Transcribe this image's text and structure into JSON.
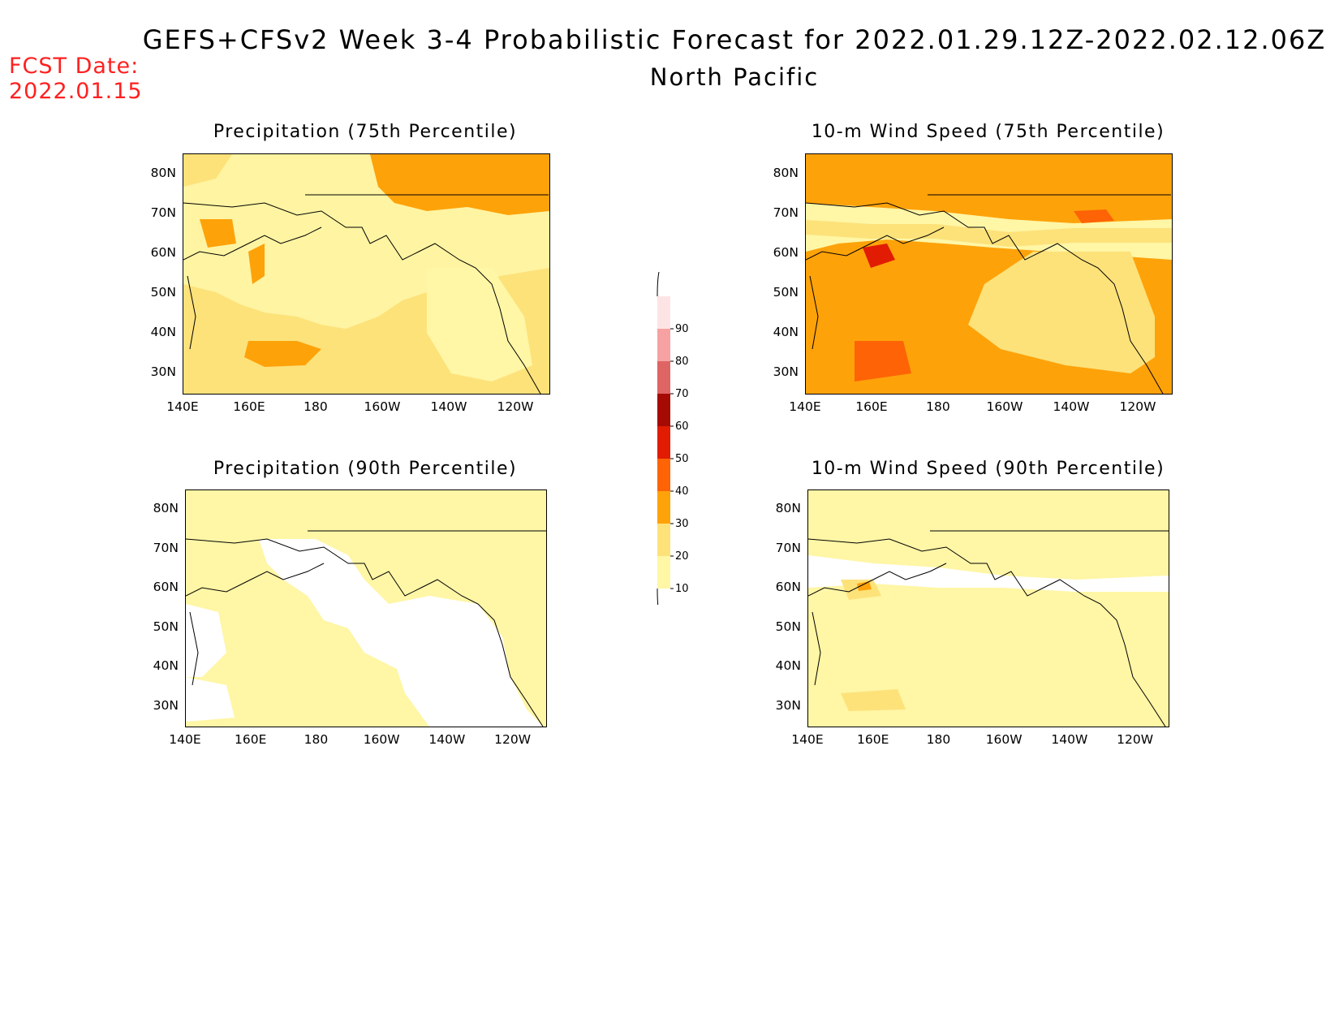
{
  "header": {
    "title_line1": "GEFS+CFSv2 Week 3-4 Probabilistic Forecast for 2022.01.29.12Z-2022.02.12.06Z",
    "title_line2": "North Pacific",
    "fcst_label": "FCST Date:",
    "fcst_date": "2022.01.15",
    "fcst_color": "#ff2020"
  },
  "axes": {
    "lat_labels": [
      "80N",
      "70N",
      "60N",
      "50N",
      "40N",
      "30N"
    ],
    "lon_labels": [
      "140E",
      "160E",
      "180",
      "160W",
      "140W",
      "120W"
    ]
  },
  "panels": [
    {
      "id": "precip75",
      "title": "Precipitation (75th Percentile)"
    },
    {
      "id": "wind75",
      "title": "10-m Wind Speed (75th Percentile)"
    },
    {
      "id": "precip90",
      "title": "Precipitation (90th Percentile)"
    },
    {
      "id": "wind90",
      "title": "10-m Wind Speed (90th Percentile)"
    }
  ],
  "colorbar": {
    "levels": [
      "10",
      "20",
      "30",
      "40",
      "50",
      "60",
      "70",
      "80",
      "90"
    ],
    "colors": [
      "#fff6a6",
      "#fde27a",
      "#fea20a",
      "#fe6306",
      "#e11c03",
      "#a50b02",
      "#df6464",
      "#f6a2a2",
      "#fde4e4"
    ]
  }
}
